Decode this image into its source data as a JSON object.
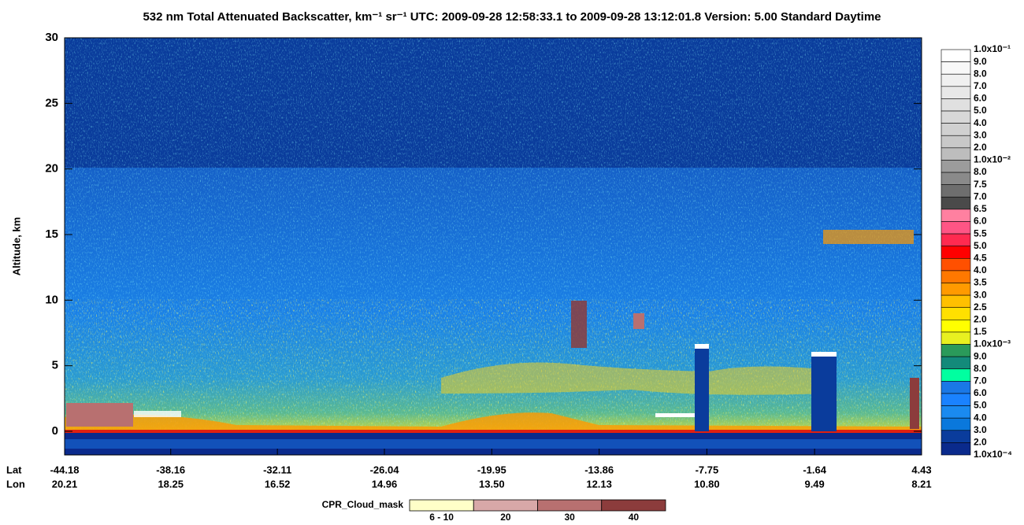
{
  "chart_data": {
    "type": "curtain",
    "title": "532 nm Total Attenuated Backscatter, km⁻¹ sr⁻¹    UTC:  2009-09-28 12:58:33.1  to  2009-09-28 13:12:01.8    Version: 5.00  Standard  Daytime",
    "y_label": "Altitude, km",
    "ylim": [
      -1.8,
      30
    ],
    "yticks": [
      0,
      5,
      10,
      15,
      20,
      25,
      30
    ],
    "x_row_labels": [
      "Lat",
      "Lon"
    ],
    "xlim": [
      -44.18,
      4.43
    ],
    "xticks": [
      -44.18,
      -38.16,
      -32.11,
      -26.04,
      -19.95,
      -13.86,
      -7.75,
      -1.64,
      4.43
    ],
    "lon_labels": [
      "20.21",
      "18.25",
      "16.52",
      "14.96",
      "13.50",
      "12.13",
      "10.80",
      "9.49",
      "8.21"
    ],
    "colorbar": {
      "labels": [
        "1.0x10⁻¹",
        "9.0",
        "8.0",
        "7.0",
        "6.0",
        "5.0",
        "4.0",
        "3.0",
        "2.0",
        "1.0x10⁻²",
        "8.0",
        "7.5",
        "7.0",
        "6.5",
        "6.0",
        "5.5",
        "5.0",
        "4.5",
        "4.0",
        "3.5",
        "3.0",
        "2.5",
        "2.0",
        "1.5",
        "1.0x10⁻³",
        "9.0",
        "8.0",
        "7.0",
        "6.0",
        "5.0",
        "4.0",
        "3.0",
        "2.0",
        "1.0x10⁻⁴"
      ],
      "colors": [
        "#ffffff",
        "#f8f8f8",
        "#f0f0f0",
        "#e8e8e8",
        "#e0e0e0",
        "#d8d8d8",
        "#d0d0d0",
        "#c8c8c8",
        "#bdbdbd",
        "#9c9c9c",
        "#8a8a8a",
        "#6e6e6e",
        "#4a4a4a",
        "#ff80a0",
        "#ff5585",
        "#ff2a50",
        "#ff0000",
        "#ff5000",
        "#ff7800",
        "#ff9a00",
        "#ffc000",
        "#ffe000",
        "#ffff00",
        "#e8f020",
        "#2a9a5a",
        "#138a7a",
        "#00ffa0",
        "#1a78e6",
        "#1a82ff",
        "#1a8af0",
        "#0a78dc",
        "#0a3c9c",
        "#0a2a8c"
      ]
    },
    "cpr_legend": {
      "title": "CPR_Cloud_mask",
      "labels": [
        "6 - 10",
        "20",
        "30",
        "40"
      ],
      "colors": [
        "#ffffc8",
        "#d8a8a8",
        "#b87070",
        "#8c3c3c"
      ]
    }
  }
}
